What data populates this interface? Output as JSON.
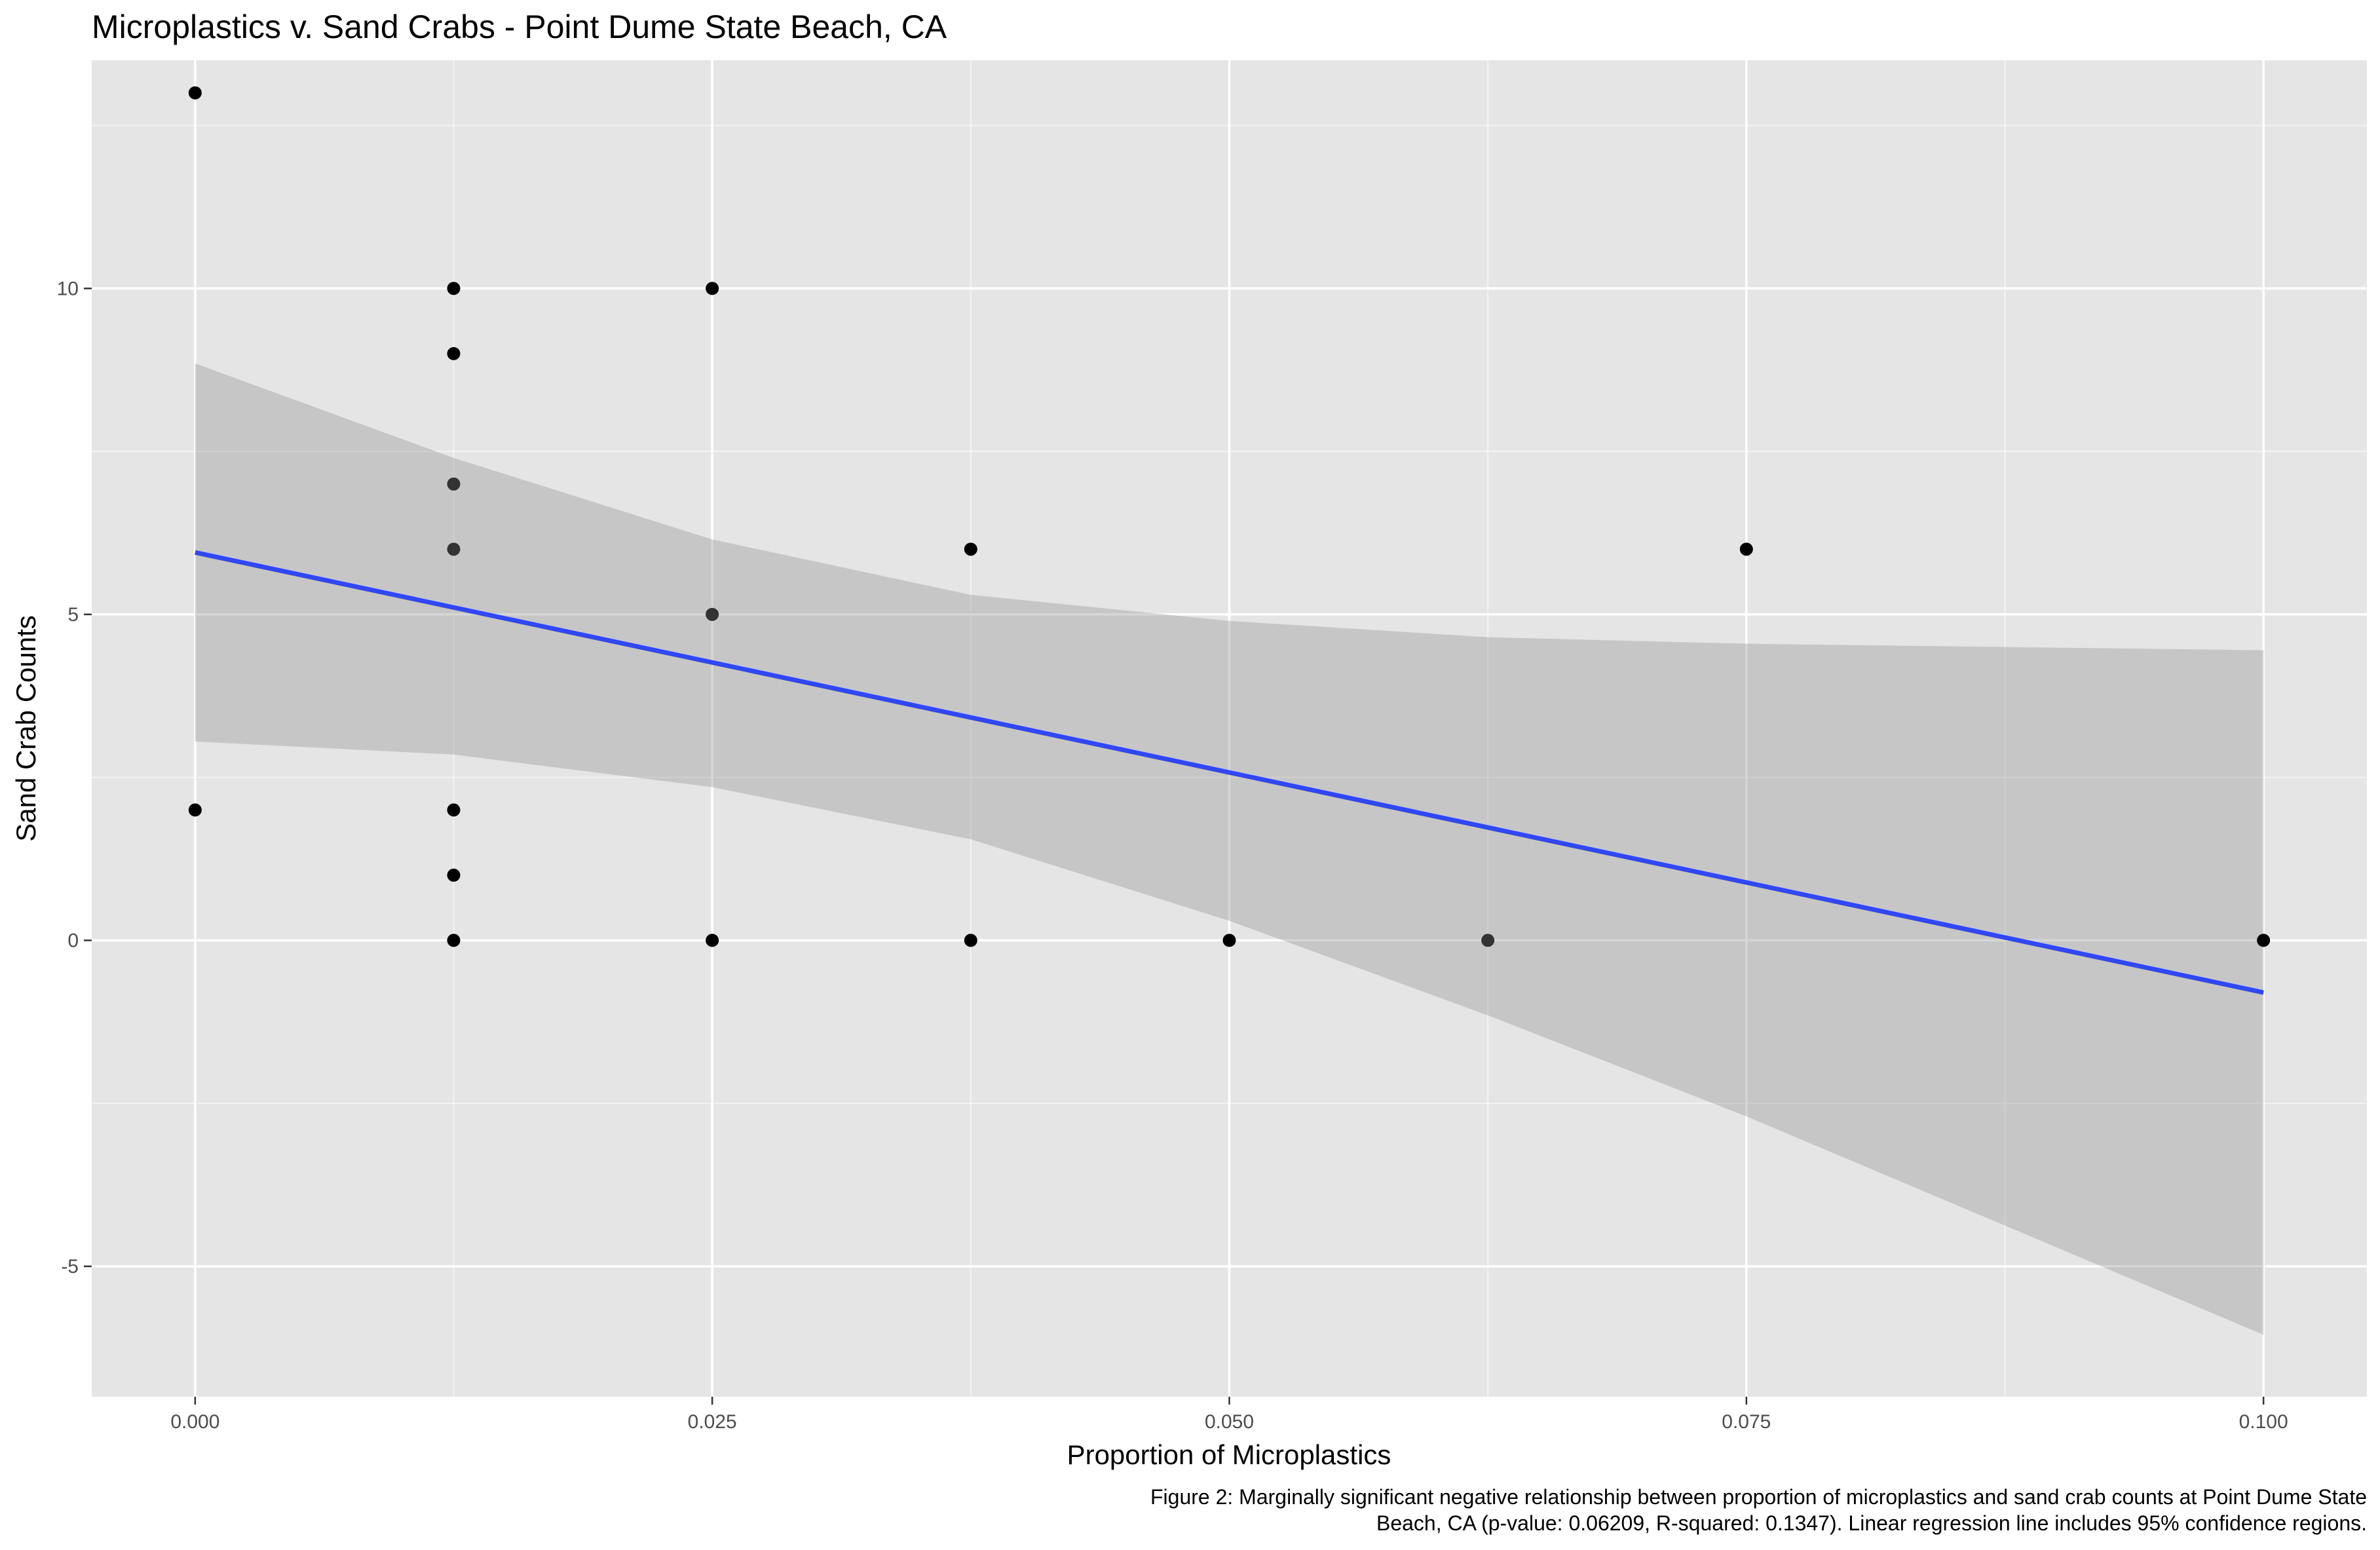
{
  "chart_data": {
    "type": "scatter",
    "title": "Microplastics v. Sand Crabs - Point Dume State Beach, CA",
    "xlabel": "Proportion of Microplastics",
    "ylabel": "Sand Crab Counts",
    "caption_lines": [
      "Figure 2: Marginally significant negative relationship between proportion of microplastics and sand crab counts at Point Dume State",
      "Beach, CA (p-value: 0.06209, R-squared: 0.1347). Linear regression line includes 95% confidence regions."
    ],
    "xlim": [
      -0.005,
      0.105
    ],
    "ylim": [
      -7.0,
      13.5
    ],
    "x_ticks": [
      0.0,
      0.025,
      0.05,
      0.075,
      0.1
    ],
    "x_tick_labels": [
      "0.000",
      "0.025",
      "0.050",
      "0.075",
      "0.100"
    ],
    "y_ticks": [
      -5,
      0,
      5,
      10
    ],
    "y_tick_labels": [
      "-5",
      "0",
      "5",
      "10"
    ],
    "grid": true,
    "legend": "none",
    "points": [
      {
        "x": 0.0,
        "y": 13,
        "overlap": 1
      },
      {
        "x": 0.0,
        "y": 2,
        "overlap": 1
      },
      {
        "x": 0.0125,
        "y": 10,
        "overlap": 1
      },
      {
        "x": 0.0125,
        "y": 9,
        "overlap": 1
      },
      {
        "x": 0.0125,
        "y": 7,
        "overlap": 2
      },
      {
        "x": 0.0125,
        "y": 6,
        "overlap": 2
      },
      {
        "x": 0.0125,
        "y": 2,
        "overlap": 1
      },
      {
        "x": 0.0125,
        "y": 1,
        "overlap": 1
      },
      {
        "x": 0.0125,
        "y": 0,
        "overlap": 1
      },
      {
        "x": 0.025,
        "y": 10,
        "overlap": 1
      },
      {
        "x": 0.025,
        "y": 5,
        "overlap": 2
      },
      {
        "x": 0.025,
        "y": 0,
        "overlap": 1
      },
      {
        "x": 0.0375,
        "y": 6,
        "overlap": 1
      },
      {
        "x": 0.0375,
        "y": 0,
        "overlap": 1
      },
      {
        "x": 0.05,
        "y": 0,
        "overlap": 1
      },
      {
        "x": 0.0625,
        "y": 0,
        "overlap": 2
      },
      {
        "x": 0.075,
        "y": 6,
        "overlap": 1
      },
      {
        "x": 0.1,
        "y": 0,
        "overlap": 1
      }
    ],
    "regression": {
      "intercept": 5.95,
      "slope": -67.5,
      "x_range": [
        0.0,
        0.1
      ]
    },
    "confidence_band": {
      "x": [
        0.0,
        0.0125,
        0.025,
        0.0375,
        0.05,
        0.0625,
        0.075,
        0.1
      ],
      "lower": [
        3.05,
        2.85,
        2.35,
        1.55,
        0.3,
        -1.15,
        -2.7,
        -6.05
      ],
      "upper": [
        8.85,
        7.4,
        6.15,
        5.3,
        4.9,
        4.65,
        4.55,
        4.45
      ]
    },
    "colors": {
      "panel_background": "#e5e5e5",
      "grid_major": "#ffffff",
      "point": "#000000",
      "point_overlap": "#333333",
      "line": "#3047f2",
      "band": "#999999"
    }
  }
}
